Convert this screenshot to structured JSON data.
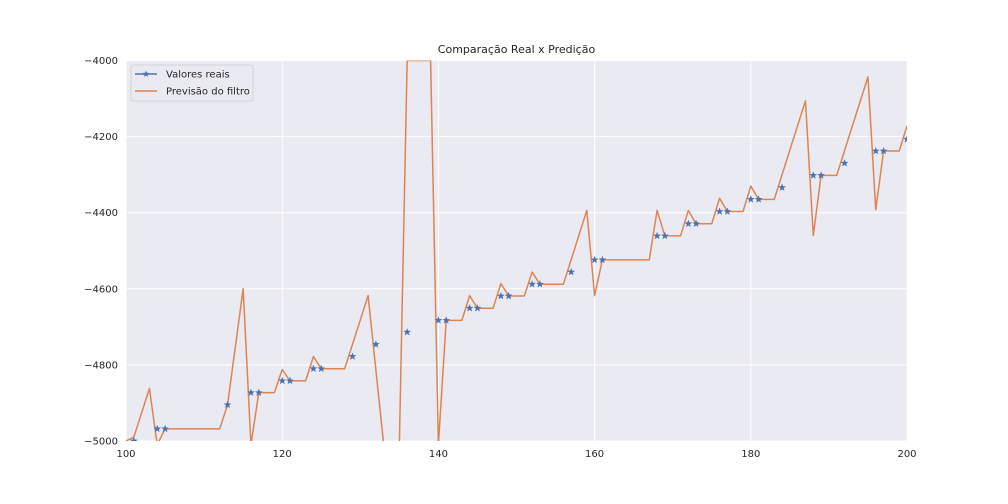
{
  "chart_data": {
    "type": "line",
    "title": "Comparação Real x Predição",
    "xlabel": "",
    "ylabel": "",
    "xlim": [
      100,
      200
    ],
    "ylim": [
      -5000,
      -4000
    ],
    "x_ticks": [
      100,
      120,
      140,
      160,
      180,
      200
    ],
    "y_ticks": [
      -5000,
      -4800,
      -4600,
      -4400,
      -4200,
      -4000
    ],
    "grid": true,
    "background": "#eaeaf2",
    "legend": {
      "placement": "top-left"
    },
    "series": [
      {
        "name": "Valores reais",
        "color": "#4c72b0",
        "marker": "star",
        "linestyle": "none",
        "points": [
          [
            101,
            -5000
          ],
          [
            104,
            -4968
          ],
          [
            105,
            -4968
          ],
          [
            113,
            -4905
          ],
          [
            116,
            -4873
          ],
          [
            117,
            -4873
          ],
          [
            120,
            -4842
          ],
          [
            121,
            -4842
          ],
          [
            124,
            -4810
          ],
          [
            125,
            -4810
          ],
          [
            129,
            -4778
          ],
          [
            132,
            -4746
          ],
          [
            136,
            -4714
          ],
          [
            140,
            -4683
          ],
          [
            141,
            -4683
          ],
          [
            144,
            -4651
          ],
          [
            145,
            -4651
          ],
          [
            148,
            -4619
          ],
          [
            149,
            -4619
          ],
          [
            152,
            -4588
          ],
          [
            153,
            -4588
          ],
          [
            157,
            -4556
          ],
          [
            160,
            -4524
          ],
          [
            161,
            -4524
          ],
          [
            168,
            -4461
          ],
          [
            169,
            -4461
          ],
          [
            172,
            -4429
          ],
          [
            173,
            -4429
          ],
          [
            176,
            -4397
          ],
          [
            177,
            -4397
          ],
          [
            180,
            -4365
          ],
          [
            181,
            -4365
          ],
          [
            184,
            -4334
          ],
          [
            188,
            -4302
          ],
          [
            189,
            -4302
          ],
          [
            192,
            -4270
          ],
          [
            196,
            -4238
          ],
          [
            197,
            -4238
          ],
          [
            200,
            -4207
          ]
        ]
      },
      {
        "name": "Previsão do filtro",
        "color": "#dd8452",
        "marker": "none",
        "linestyle": "solid",
        "points": [
          [
            100,
            -5000
          ],
          [
            101,
            -4990
          ],
          [
            103,
            -4862
          ],
          [
            104,
            -5010
          ],
          [
            105,
            -4968
          ],
          [
            112,
            -4968
          ],
          [
            113,
            -4905
          ],
          [
            115,
            -4600
          ],
          [
            116,
            -5010
          ],
          [
            117,
            -4873
          ],
          [
            119,
            -4873
          ],
          [
            120,
            -4812
          ],
          [
            121,
            -4842
          ],
          [
            123,
            -4842
          ],
          [
            124,
            -4778
          ],
          [
            125,
            -4810
          ],
          [
            128,
            -4810
          ],
          [
            131,
            -4618
          ],
          [
            133,
            -5010
          ],
          [
            135,
            -5010
          ],
          [
            136,
            -4000
          ],
          [
            139,
            -4000
          ],
          [
            140,
            -5010
          ],
          [
            141,
            -4683
          ],
          [
            143,
            -4683
          ],
          [
            144,
            -4618
          ],
          [
            145,
            -4651
          ],
          [
            147,
            -4651
          ],
          [
            148,
            -4586
          ],
          [
            149,
            -4619
          ],
          [
            151,
            -4619
          ],
          [
            152,
            -4556
          ],
          [
            153,
            -4588
          ],
          [
            156,
            -4588
          ],
          [
            159,
            -4394
          ],
          [
            160,
            -4618
          ],
          [
            161,
            -4524
          ],
          [
            167,
            -4524
          ],
          [
            168,
            -4394
          ],
          [
            169,
            -4461
          ],
          [
            171,
            -4461
          ],
          [
            172,
            -4394
          ],
          [
            173,
            -4429
          ],
          [
            175,
            -4429
          ],
          [
            176,
            -4362
          ],
          [
            177,
            -4397
          ],
          [
            179,
            -4397
          ],
          [
            180,
            -4330
          ],
          [
            181,
            -4365
          ],
          [
            183,
            -4365
          ],
          [
            187,
            -4106
          ],
          [
            188,
            -4460
          ],
          [
            189,
            -4302
          ],
          [
            191,
            -4302
          ],
          [
            195,
            -4043
          ],
          [
            196,
            -4392
          ],
          [
            197,
            -4238
          ],
          [
            199,
            -4238
          ],
          [
            200,
            -4172
          ]
        ]
      }
    ]
  }
}
